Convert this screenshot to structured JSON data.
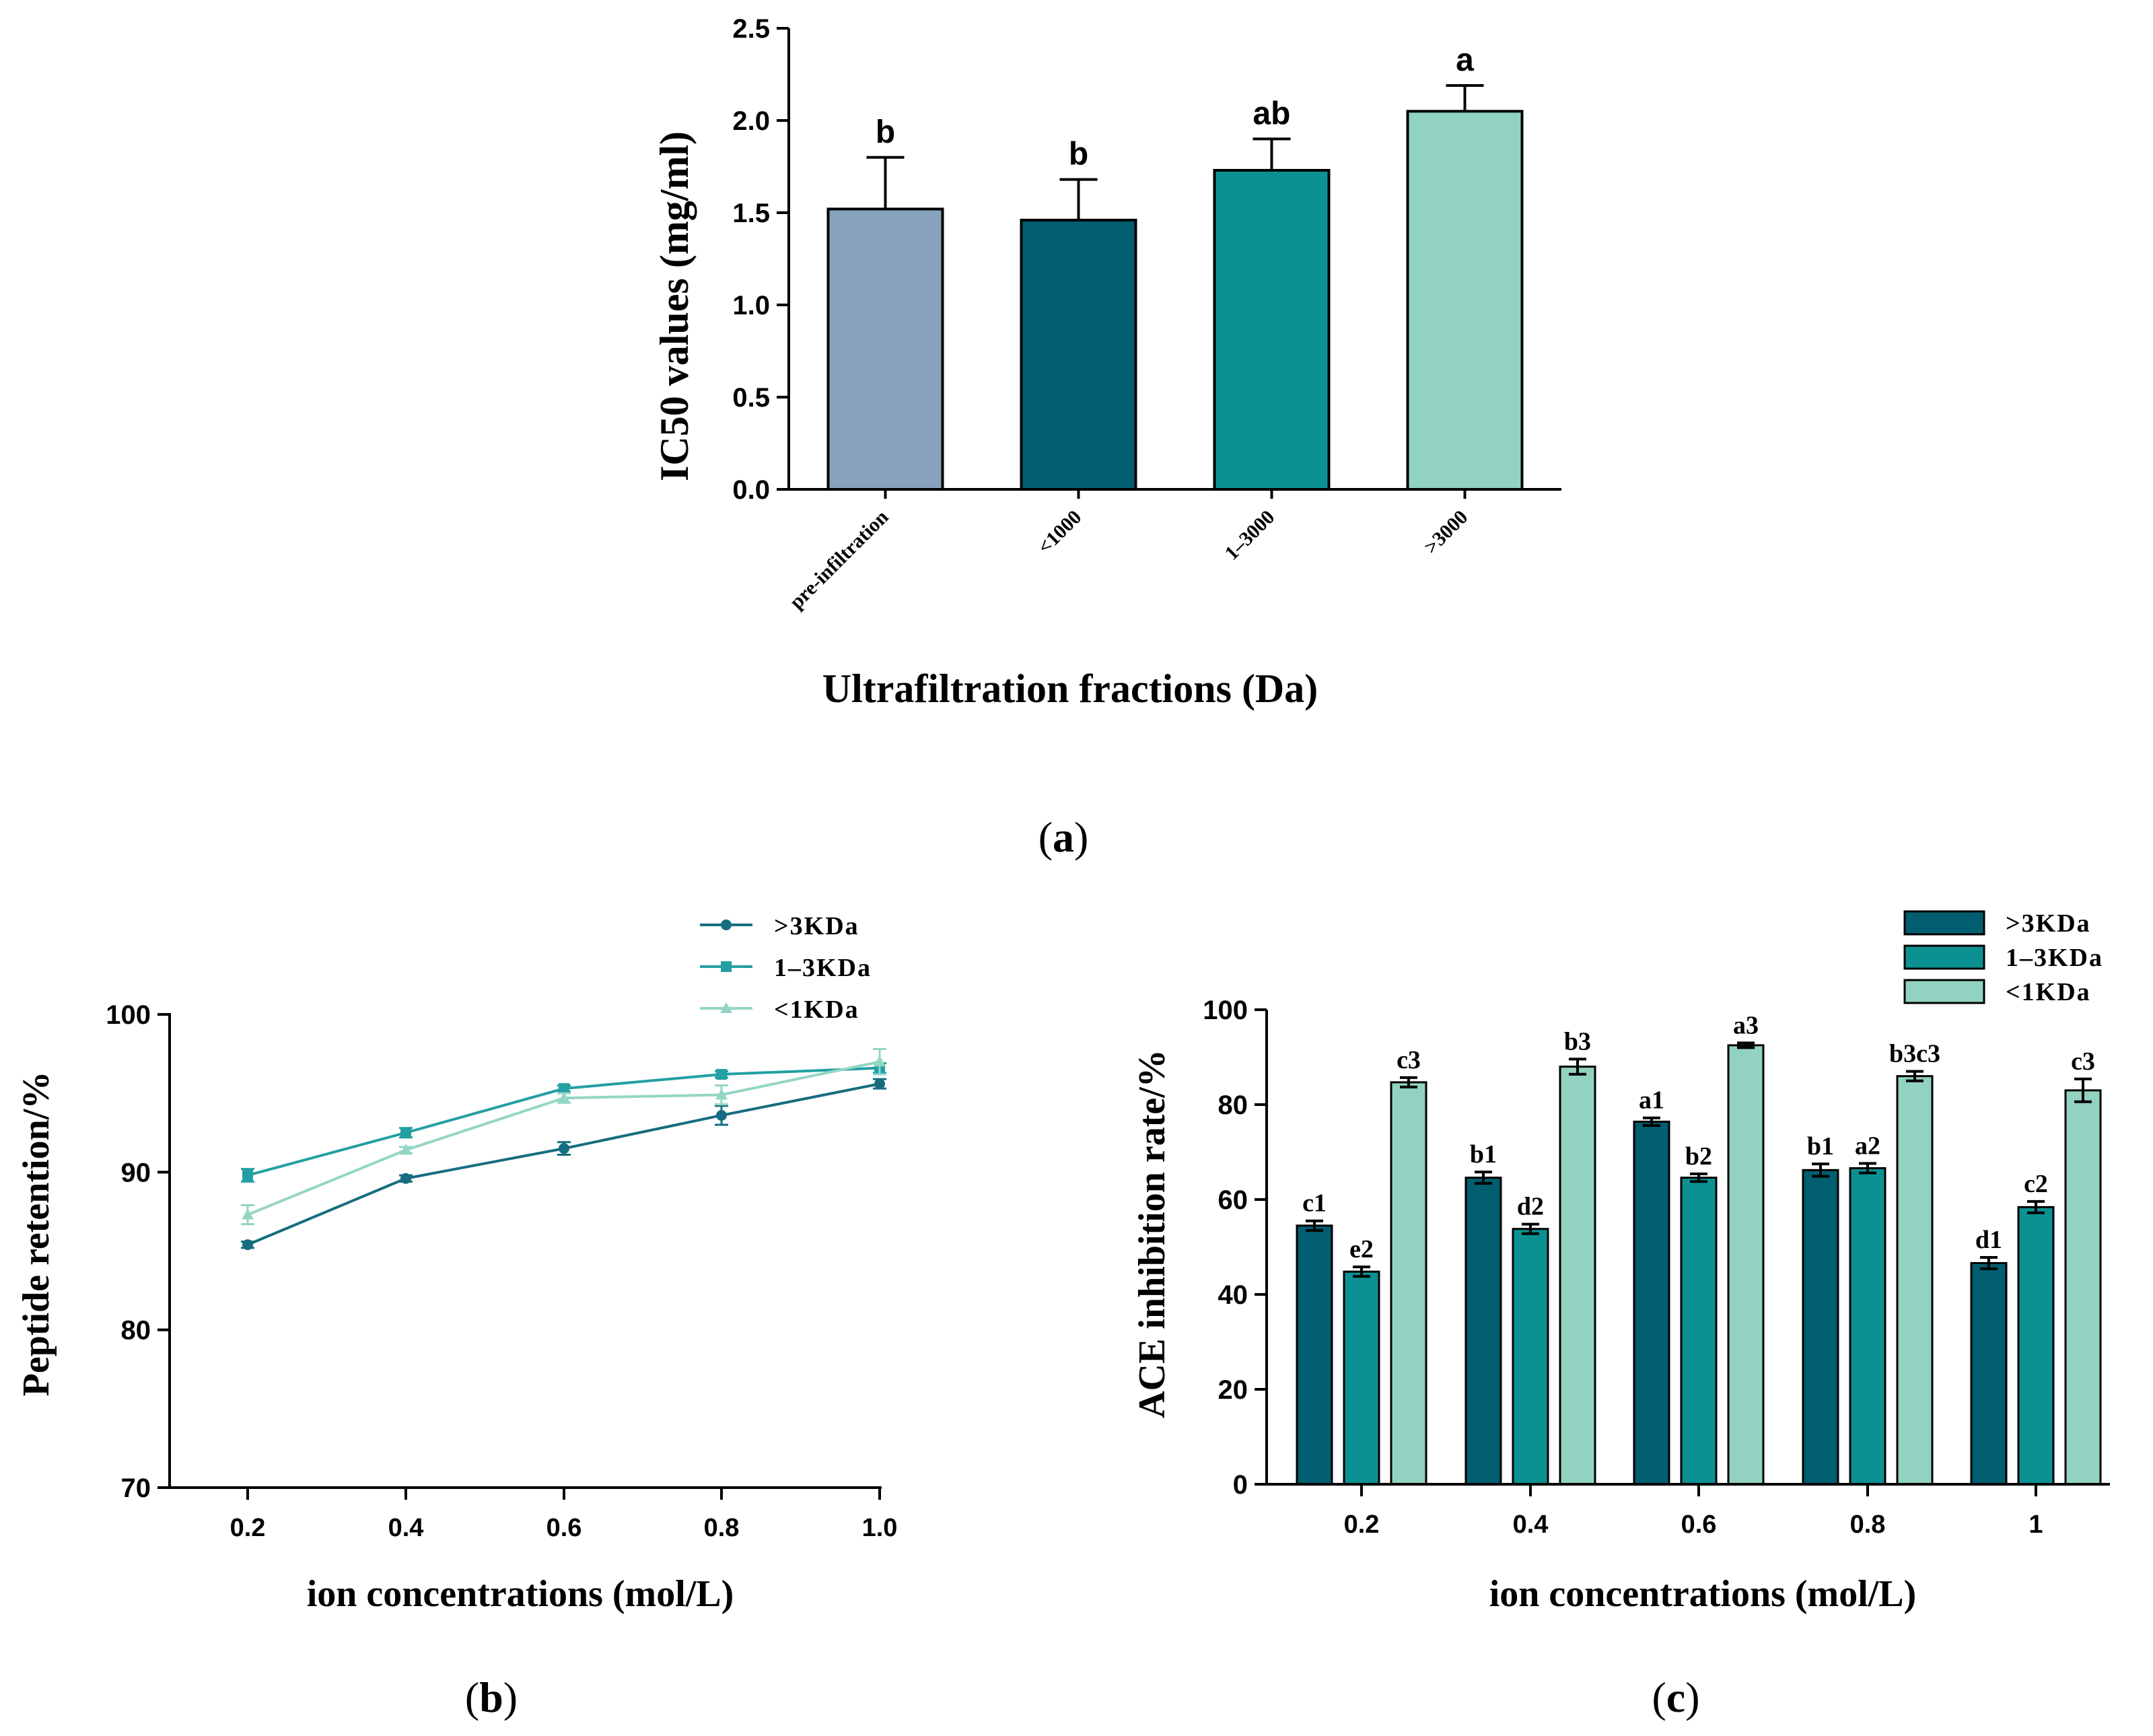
{
  "chart_data": [
    {
      "panel": "a",
      "type": "bar",
      "title": "",
      "xlabel": "Ultrafiltration fractions (Da)",
      "ylabel": "IC50 values (mg/ml)",
      "ylim": [
        0,
        2.5
      ],
      "yticks": [
        "0.0",
        "0.5",
        "1.0",
        "1.5",
        "2.0",
        "2.5"
      ],
      "categories": [
        "pre-infiltration",
        "<1000",
        "1–3000",
        ">3000"
      ],
      "values": [
        1.52,
        1.46,
        1.73,
        2.05
      ],
      "errors": [
        0.28,
        0.22,
        0.17,
        0.14
      ],
      "significance": [
        "b",
        "b",
        "ab",
        "a"
      ],
      "colors": [
        "#87a2bc",
        "#005e70",
        "#0c9193",
        "#92d2c0"
      ],
      "panel_label": "a"
    },
    {
      "panel": "b",
      "type": "line",
      "xlabel": "ion concentrations (mol/L)",
      "ylabel": "Peptide retention/%",
      "ylim": [
        70,
        100
      ],
      "yticks": [
        "70",
        "80",
        "90",
        "100"
      ],
      "x": [
        0.2,
        0.4,
        0.6,
        0.8,
        1.0
      ],
      "xticks": [
        "0.2",
        "0.4",
        "0.6",
        "0.8",
        "1.0"
      ],
      "series": [
        {
          "name": ">3KDa",
          "values": [
            85.4,
            89.6,
            91.5,
            93.6,
            95.6
          ],
          "errors": [
            0.2,
            0.2,
            0.4,
            0.6,
            0.3
          ],
          "color": "#166d80",
          "marker": "circle"
        },
        {
          "name": "1–3KDa",
          "values": [
            89.8,
            92.5,
            95.3,
            96.2,
            96.6
          ],
          "errors": [
            0.4,
            0.3,
            0.2,
            0.2,
            0.3
          ],
          "color": "#239fa3",
          "marker": "square"
        },
        {
          "name": "<1KDa",
          "values": [
            87.3,
            91.4,
            94.7,
            94.9,
            97.0
          ],
          "errors": [
            0.6,
            0.2,
            0.3,
            0.6,
            0.8
          ],
          "color": "#93d6c5",
          "marker": "triangle"
        }
      ],
      "legend_position": "top-right",
      "panel_label": "b"
    },
    {
      "panel": "c",
      "type": "bar",
      "xlabel": "ion concentrations (mol/L)",
      "ylabel": "ACE inhibition rate/%",
      "ylim": [
        0,
        100
      ],
      "yticks": [
        "0",
        "20",
        "40",
        "60",
        "80",
        "100"
      ],
      "categories": [
        "0.2",
        "0.4",
        "0.6",
        "0.8",
        "1"
      ],
      "series": [
        {
          "name": ">3KDa",
          "values": [
            54.5,
            64.6,
            76.4,
            66.2,
            46.6
          ],
          "errors": [
            1.0,
            1.2,
            0.8,
            1.3,
            1.2
          ],
          "labels": [
            "c1",
            "b1",
            "a1",
            "b1",
            "d1"
          ],
          "color": "#005e70"
        },
        {
          "name": "1–3KDa",
          "values": [
            44.8,
            53.8,
            64.6,
            66.6,
            58.4
          ],
          "errors": [
            1.0,
            1.0,
            0.8,
            1.0,
            1.2
          ],
          "labels": [
            "e2",
            "d2",
            "b2",
            "a2",
            "c2"
          ],
          "color": "#0c9193"
        },
        {
          "name": "<1KDa",
          "values": [
            84.7,
            88.0,
            92.5,
            86.0,
            83.0
          ],
          "errors": [
            1.0,
            1.6,
            0.5,
            1.0,
            2.4
          ],
          "labels": [
            "c3",
            "b3",
            "a3",
            "b3c3",
            "c3"
          ],
          "color": "#92d2c0"
        }
      ],
      "legend_position": "top-right",
      "panel_label": "c"
    }
  ]
}
